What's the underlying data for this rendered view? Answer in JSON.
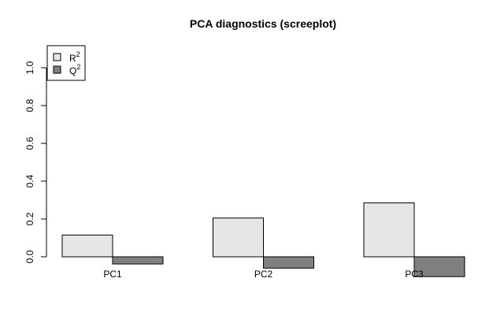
{
  "chart_data": {
    "type": "bar",
    "title": "PCA diagnostics (screeplot)",
    "xlabel": "",
    "ylabel": "",
    "categories": [
      "PC1",
      "PC2",
      "PC3"
    ],
    "series": [
      {
        "name": "R2",
        "values": [
          0.115,
          0.205,
          0.285
        ]
      },
      {
        "name": "Q2",
        "values": [
          -0.038,
          -0.06,
          -0.105
        ]
      }
    ],
    "legend": {
      "position": "top-left",
      "entries": [
        {
          "base": "R",
          "sup": "2"
        },
        {
          "base": "Q",
          "sup": "2"
        }
      ]
    },
    "yticks": [
      "0.0",
      "0.2",
      "0.4",
      "0.6",
      "0.8",
      "1.0"
    ],
    "ylim": [
      -0.105,
      1.1
    ],
    "grid": false,
    "colors": {
      "R2": "#e6e6e6",
      "Q2": "#808080",
      "border": "#000000"
    }
  }
}
